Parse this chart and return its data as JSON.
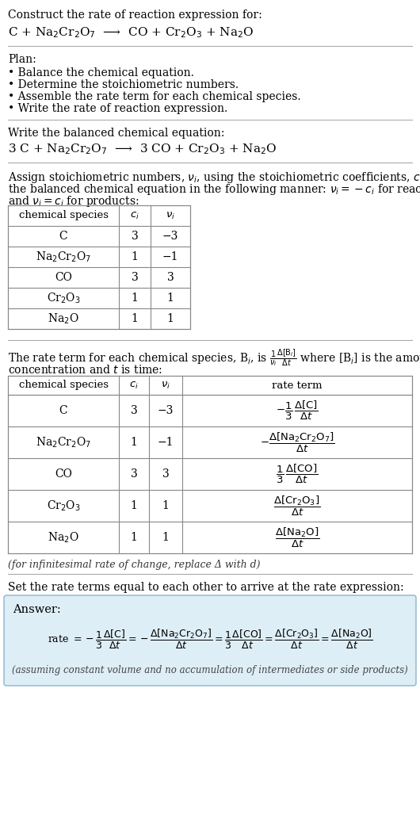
{
  "bg_color": "#ffffff",
  "text_color": "#000000",
  "title_line1": "Construct the rate of reaction expression for:",
  "title_eq": "C + Na$_2$Cr$_2$O$_7$  ⟶  CO + Cr$_2$O$_3$ + Na$_2$O",
  "plan_header": "Plan:",
  "plan_items": [
    "• Balance the chemical equation.",
    "• Determine the stoichiometric numbers.",
    "• Assemble the rate term for each chemical species.",
    "• Write the rate of reaction expression."
  ],
  "balanced_header": "Write the balanced chemical equation:",
  "balanced_eq": "3 C + Na$_2$Cr$_2$O$_7$  ⟶  3 CO + Cr$_2$O$_3$ + Na$_2$O",
  "assign_text1": "Assign stoichiometric numbers, $\\nu_i$, using the stoichiometric coefficients, $c_i$, from",
  "assign_text2": "the balanced chemical equation in the following manner: $\\nu_i = -c_i$ for reactants",
  "assign_text3": "and $\\nu_i = c_i$ for products:",
  "table1_headers": [
    "chemical species",
    "$c_i$",
    "$\\nu_i$"
  ],
  "table1_rows": [
    [
      "C",
      "3",
      "−3"
    ],
    [
      "Na$_2$Cr$_2$O$_7$",
      "1",
      "−1"
    ],
    [
      "CO",
      "3",
      "3"
    ],
    [
      "Cr$_2$O$_3$",
      "1",
      "1"
    ],
    [
      "Na$_2$O",
      "1",
      "1"
    ]
  ],
  "rate_text1": "The rate term for each chemical species, B$_i$, is $\\frac{1}{\\nu_i}\\frac{\\Delta[\\mathrm{B}_i]}{\\Delta t}$ where [B$_i$] is the amount",
  "rate_text2": "concentration and $t$ is time:",
  "table2_headers": [
    "chemical species",
    "$c_i$",
    "$\\nu_i$",
    "rate term"
  ],
  "table2_rows": [
    [
      "C",
      "3",
      "−3",
      "$-\\dfrac{1}{3}\\,\\dfrac{\\Delta[\\mathrm{C}]}{\\Delta t}$"
    ],
    [
      "Na$_2$Cr$_2$O$_7$",
      "1",
      "−1",
      "$-\\dfrac{\\Delta[\\mathrm{Na_2Cr_2O_7}]}{\\Delta t}$"
    ],
    [
      "CO",
      "3",
      "3",
      "$\\dfrac{1}{3}\\,\\dfrac{\\Delta[\\mathrm{CO}]}{\\Delta t}$"
    ],
    [
      "Cr$_2$O$_3$",
      "1",
      "1",
      "$\\dfrac{\\Delta[\\mathrm{Cr_2O_3}]}{\\Delta t}$"
    ],
    [
      "Na$_2$O",
      "1",
      "1",
      "$\\dfrac{\\Delta[\\mathrm{Na_2O}]}{\\Delta t}$"
    ]
  ],
  "infinitesimal_note": "(for infinitesimal rate of change, replace Δ with d)",
  "set_equal_text": "Set the rate terms equal to each other to arrive at the rate expression:",
  "answer_box_color": "#deeef6",
  "answer_border_color": "#8ab4cc",
  "answer_label": "Answer:",
  "answer_eq": "rate $= -\\dfrac{1}{3}\\dfrac{\\Delta[\\mathrm{C}]}{\\Delta t} = -\\dfrac{\\Delta[\\mathrm{Na_2Cr_2O_7}]}{\\Delta t} = \\dfrac{1}{3}\\dfrac{\\Delta[\\mathrm{CO}]}{\\Delta t} = \\dfrac{\\Delta[\\mathrm{Cr_2O_3}]}{\\Delta t} = \\dfrac{\\Delta[\\mathrm{Na_2O}]}{\\Delta t}$",
  "assuming_note": "(assuming constant volume and no accumulation of intermediates or side products)"
}
